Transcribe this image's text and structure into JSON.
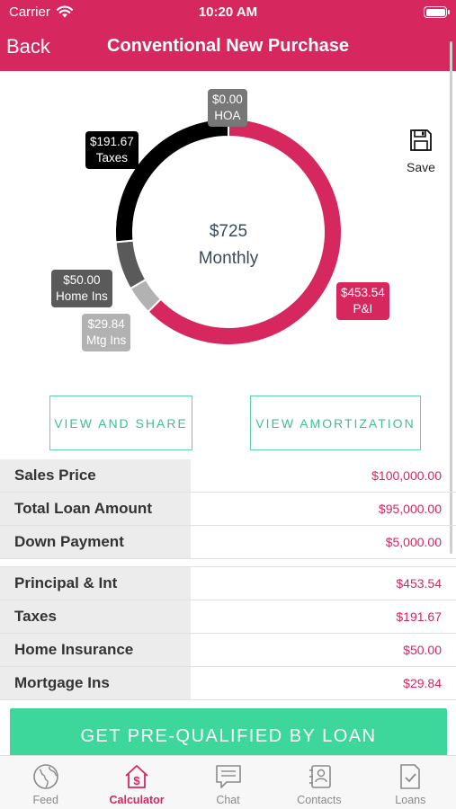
{
  "status_bar": {
    "carrier": "Carrier",
    "time": "10:20 AM"
  },
  "nav": {
    "back": "Back",
    "title": "Conventional New Purchase"
  },
  "chart_data": {
    "type": "pie",
    "style": "donut",
    "center_value": "$725",
    "center_label": "Monthly",
    "slices": [
      {
        "label": "P&I",
        "value_text": "$453.54",
        "value": 453.54,
        "color": "#d6275f"
      },
      {
        "label": "Mtg Ins",
        "value_text": "$29.84",
        "value": 29.84,
        "color": "#b2b2b2"
      },
      {
        "label": "Home Ins",
        "value_text": "$50.00",
        "value": 50.0,
        "color": "#5a5a5a"
      },
      {
        "label": "Taxes",
        "value_text": "$191.67",
        "value": 191.67,
        "color": "#000000"
      },
      {
        "label": "HOA",
        "value_text": "$0.00",
        "value": 0.0,
        "color": "#777777"
      }
    ]
  },
  "save_label": "Save",
  "buttons": {
    "view_share": "VIEW AND SHARE",
    "view_amortization": "VIEW AMORTIZATION"
  },
  "table": {
    "group1": [
      {
        "label": "Sales Price",
        "value": "$100,000.00"
      },
      {
        "label": "Total Loan Amount",
        "value": "$95,000.00"
      },
      {
        "label": "Down Payment",
        "value": "$5,000.00"
      }
    ],
    "group2": [
      {
        "label": "Principal & Int",
        "value": "$453.54"
      },
      {
        "label": "Taxes",
        "value": "$191.67"
      },
      {
        "label": "Home Insurance",
        "value": "$50.00"
      },
      {
        "label": "Mortgage Ins",
        "value": "$29.84"
      }
    ]
  },
  "cta": "GET PRE-QUALIFIED BY LOAN",
  "tabs": [
    {
      "label": "Feed",
      "icon": "globe-icon"
    },
    {
      "label": "Calculator",
      "icon": "calculator-house-icon",
      "active": true
    },
    {
      "label": "Chat",
      "icon": "chat-icon"
    },
    {
      "label": "Contacts",
      "icon": "contacts-icon"
    },
    {
      "label": "Loans",
      "icon": "document-check-icon"
    }
  ],
  "colors": {
    "brand": "#d6275f",
    "accent": "#3dd79b",
    "outline": "#5fd3a8"
  }
}
